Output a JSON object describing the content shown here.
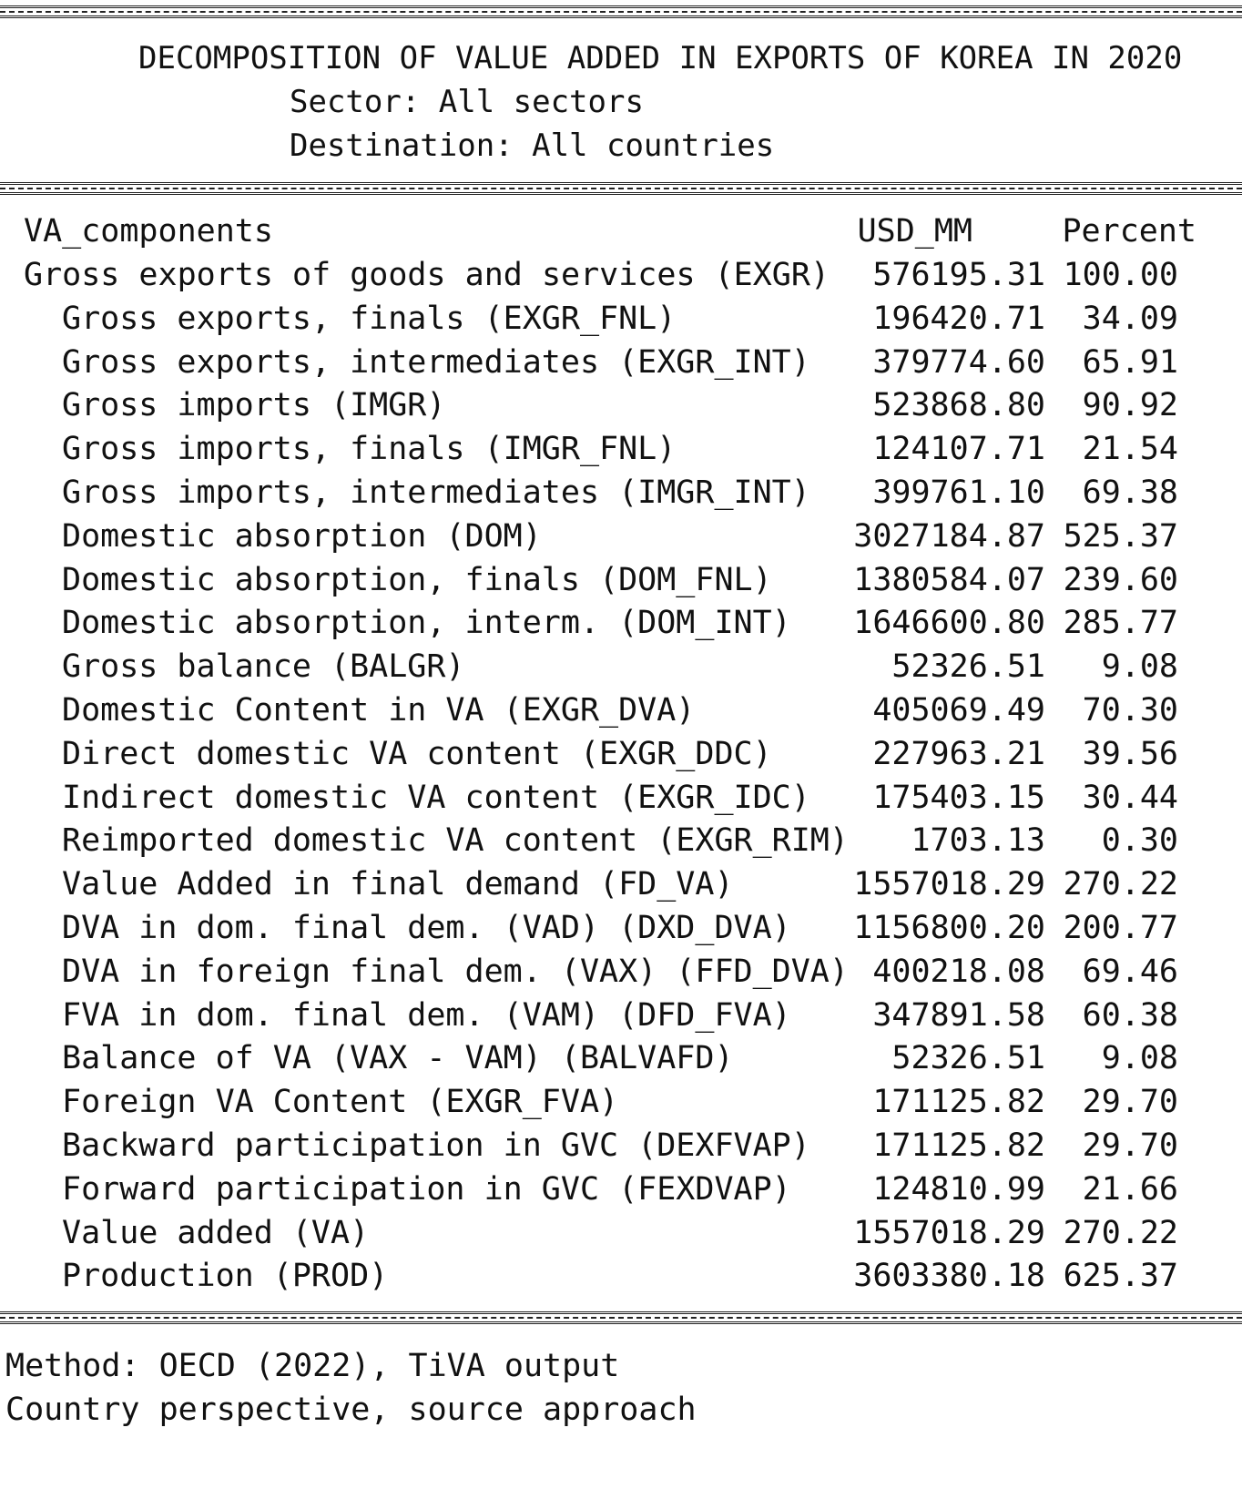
{
  "header": {
    "title": "DECOMPOSITION OF VALUE ADDED IN EXPORTS OF KOREA IN 2020",
    "sector": "Sector: All sectors",
    "destination": "Destination: All countries"
  },
  "table": {
    "columns": [
      "VA_components",
      "USD_MM",
      "Percent"
    ],
    "rows": [
      {
        "label": "Gross exports of goods and services (EXGR)",
        "usd": "576195.31",
        "pct": "100.00"
      },
      {
        "label": "Gross exports, finals (EXGR_FNL)",
        "usd": "196420.71",
        "pct": "34.09"
      },
      {
        "label": "Gross exports, intermediates (EXGR_INT)",
        "usd": "379774.60",
        "pct": "65.91"
      },
      {
        "label": "Gross imports (IMGR)",
        "usd": "523868.80",
        "pct": "90.92"
      },
      {
        "label": "Gross imports, finals (IMGR_FNL)",
        "usd": "124107.71",
        "pct": "21.54"
      },
      {
        "label": "Gross imports, intermediates (IMGR_INT)",
        "usd": "399761.10",
        "pct": "69.38"
      },
      {
        "label": "Domestic absorption (DOM)",
        "usd": "3027184.87",
        "pct": "525.37"
      },
      {
        "label": "Domestic absorption, finals (DOM_FNL)",
        "usd": "1380584.07",
        "pct": "239.60"
      },
      {
        "label": "Domestic absorption, interm. (DOM_INT)",
        "usd": "1646600.80",
        "pct": "285.77"
      },
      {
        "label": "Gross balance (BALGR)",
        "usd": "52326.51",
        "pct": "9.08"
      },
      {
        "label": "Domestic Content in VA (EXGR_DVA)",
        "usd": "405069.49",
        "pct": "70.30"
      },
      {
        "label": "Direct domestic VA content (EXGR_DDC)",
        "usd": "227963.21",
        "pct": "39.56"
      },
      {
        "label": "Indirect domestic VA content (EXGR_IDC)",
        "usd": "175403.15",
        "pct": "30.44"
      },
      {
        "label": "Reimported domestic VA content (EXGR_RIM)",
        "usd": "1703.13",
        "pct": "0.30"
      },
      {
        "label": "Value Added in final demand (FD_VA)",
        "usd": "1557018.29",
        "pct": "270.22"
      },
      {
        "label": "DVA in dom. final dem. (VAD) (DXD_DVA)",
        "usd": "1156800.20",
        "pct": "200.77"
      },
      {
        "label": "DVA in foreign final dem. (VAX) (FFD_DVA)",
        "usd": "400218.08",
        "pct": "69.46"
      },
      {
        "label": "FVA in dom. final dem. (VAM) (DFD_FVA)",
        "usd": "347891.58",
        "pct": "60.38"
      },
      {
        "label": "Balance of VA (VAX - VAM) (BALVAFD)",
        "usd": "52326.51",
        "pct": "9.08"
      },
      {
        "label": "Foreign VA Content (EXGR_FVA)",
        "usd": "171125.82",
        "pct": "29.70"
      },
      {
        "label": "Backward participation in GVC (DEXFVAP)",
        "usd": "171125.82",
        "pct": "29.70"
      },
      {
        "label": "Forward participation in GVC (FEXDVAP)",
        "usd": "124810.99",
        "pct": "21.66"
      },
      {
        "label": "Value added (VA)",
        "usd": "1557018.29",
        "pct": "270.22"
      },
      {
        "label": "Production (PROD)",
        "usd": "3603380.18",
        "pct": "625.37"
      }
    ]
  },
  "footer": {
    "method": "Method: OECD (2022), TiVA output",
    "perspective": "Country perspective, source approach"
  }
}
